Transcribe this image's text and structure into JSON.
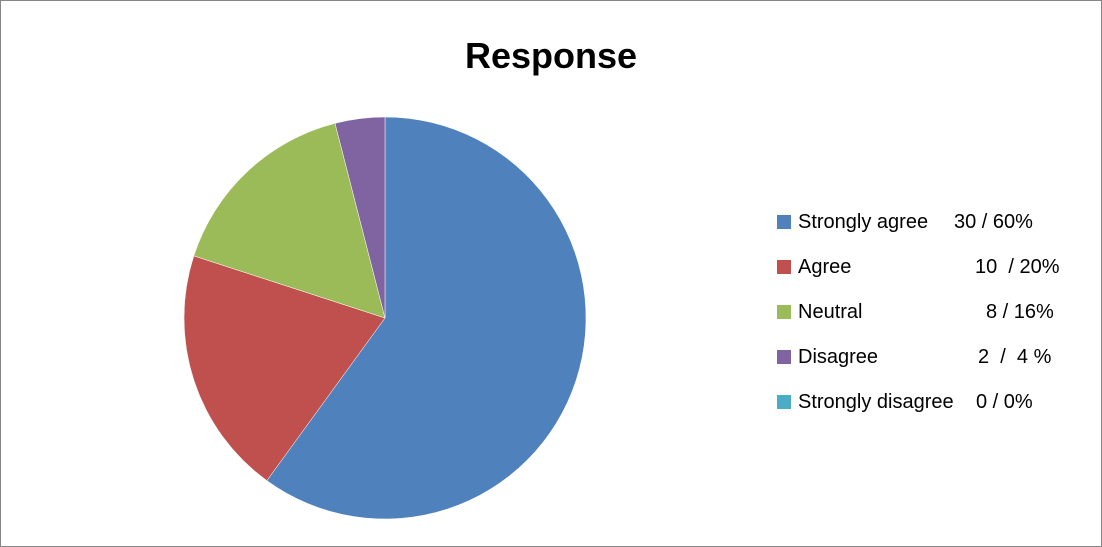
{
  "chart_data": {
    "type": "pie",
    "title": "Response",
    "slices": [
      {
        "label": "Strongly agree",
        "value": 30,
        "value_text": "30 / 60%",
        "color": "#4F81BD"
      },
      {
        "label": "Agree",
        "value": 10,
        "value_text": "10  / 20%",
        "color": "#C0504D"
      },
      {
        "label": "Neutral",
        "value": 8,
        "value_text": "8 / 16%",
        "color": "#9BBB59"
      },
      {
        "label": "Disagree",
        "value": 2,
        "value_text": "2  /  4 %",
        "color": "#8064A2"
      },
      {
        "label": "Strongly disagree",
        "value": 0,
        "value_text": "0 / 0%",
        "color": "#4BACC6"
      }
    ],
    "legend_position": "right"
  }
}
